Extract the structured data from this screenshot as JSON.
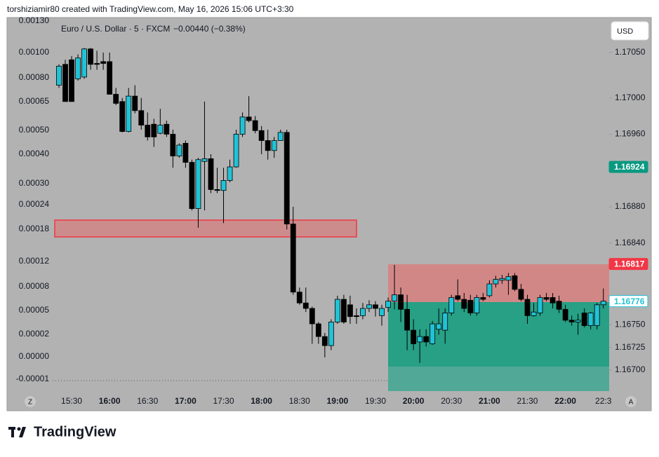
{
  "header": {
    "text": "torshiziamir80 created with TradingView.com, May 16, 2026 15:06 UTC+3:30"
  },
  "chart_data": {
    "type": "candlestick",
    "title": "Euro / U.S. Dollar · 5 · FXCM",
    "subtitle": "−0.00440 (−0.38%)",
    "currency": "USD",
    "scale_buttons": [
      "Z",
      "A"
    ],
    "up_color": "#22c2d6",
    "down_color": "#000000",
    "categories": [
      null,
      null,
      "15:30",
      null,
      null,
      null,
      null,
      null,
      "16:00",
      null,
      null,
      null,
      null,
      null,
      "16:30",
      null,
      null,
      null,
      null,
      null,
      "17:00",
      null,
      null,
      null,
      null,
      null,
      "17:30",
      null,
      null,
      null,
      null,
      null,
      "18:00",
      null,
      null,
      null,
      null,
      null,
      "18:30",
      null,
      null,
      null,
      null,
      null,
      "19:00",
      null,
      null,
      null,
      null,
      null,
      "19:30",
      null,
      null,
      null,
      null,
      null,
      "20:00",
      null,
      null,
      null,
      null,
      null,
      "20:30",
      null,
      null,
      null,
      null,
      null,
      "21:00",
      null,
      null,
      null,
      null,
      null,
      "21:30",
      null,
      null,
      null,
      null,
      null,
      "22:00",
      null,
      null,
      null,
      null,
      null,
      "22:3"
    ],
    "open": [
      1.17014,
      1.17037,
      1.17042,
      1.17021,
      1.17023,
      1.17054,
      1.17038,
      1.1704,
      1.1704,
      1.17004,
      1.16996,
      1.16963,
      1.17002,
      1.16986,
      1.1697,
      1.16971,
      1.16961,
      1.16971,
      1.1696,
      1.16936,
      1.1695,
      1.16929,
      1.16878,
      1.1693,
      1.16933,
      1.16899,
      1.16898,
      1.16909,
      1.16924,
      1.1696,
      1.16979,
      1.16975,
      1.16964,
      1.16953,
      1.16942,
      1.16953,
      1.16962,
      1.16861,
      1.16786,
      1.16774,
      1.16768,
      1.16751,
      1.16737,
      1.16727,
      1.16753,
      1.16778,
      1.16772,
      1.1676,
      1.1676,
      1.16768,
      1.16772,
      1.1676,
      1.16769,
      1.16776,
      1.16783,
      1.16767,
      1.16744,
      1.16731,
      1.16737,
      1.16729,
      1.16745,
      1.16744,
      1.16763,
      1.16782,
      1.16778,
      1.16777,
      1.16763,
      1.1678,
      1.16782,
      1.16795,
      1.16799,
      1.16799,
      1.16804,
      1.16789,
      1.16778,
      1.1676,
      1.16763,
      1.1678,
      1.1678,
      1.16776,
      1.16767,
      1.16755,
      1.16753,
      1.16763,
      1.16749,
      1.16749,
      1.16772
    ],
    "high": [
      1.17037,
      1.17042,
      1.17046,
      1.17048,
      1.17055,
      1.17055,
      1.17052,
      1.1705,
      1.1705,
      1.17011,
      1.17,
      1.17011,
      1.17014,
      1.17,
      1.16984,
      1.16977,
      1.16988,
      1.16975,
      1.16965,
      1.1695,
      1.16953,
      1.16932,
      1.16934,
      1.16996,
      1.16938,
      1.16923,
      1.16923,
      1.16932,
      1.16965,
      1.16984,
      1.17002,
      1.1698,
      1.16969,
      1.16965,
      1.16957,
      1.16965,
      1.16965,
      1.1688,
      1.16791,
      1.16791,
      1.1677,
      1.16753,
      1.16741,
      1.16756,
      1.16782,
      1.16783,
      1.16782,
      1.16768,
      1.16774,
      1.16777,
      1.16776,
      1.16772,
      1.1678,
      1.16816,
      1.16791,
      1.16783,
      1.16756,
      1.16745,
      1.16745,
      1.16754,
      1.16768,
      1.16768,
      1.16783,
      1.168,
      1.16785,
      1.16783,
      1.16783,
      1.16785,
      1.16799,
      1.16804,
      1.16805,
      1.16807,
      1.16807,
      1.16795,
      1.16783,
      1.16774,
      1.16783,
      1.16785,
      1.16785,
      1.16782,
      1.16772,
      1.1676,
      1.16762,
      1.16768,
      1.16764,
      1.16774,
      1.1679
    ],
    "low": [
      1.17011,
      1.16996,
      1.16996,
      1.17019,
      1.17021,
      1.17031,
      1.17031,
      1.17031,
      1.17004,
      1.16992,
      1.16962,
      1.16962,
      1.16983,
      1.16965,
      1.16953,
      1.16946,
      1.1696,
      1.16957,
      1.16923,
      1.16934,
      1.16923,
      1.16876,
      1.16857,
      1.16876,
      1.16895,
      1.16895,
      1.16862,
      1.16907,
      1.16923,
      1.16957,
      1.16973,
      1.16961,
      1.16938,
      1.16932,
      1.16934,
      1.16953,
      1.16855,
      1.16783,
      1.16772,
      1.16764,
      1.16729,
      1.16729,
      1.16714,
      1.16722,
      1.16751,
      1.16751,
      1.16751,
      1.16751,
      1.16756,
      1.16764,
      1.16759,
      1.16749,
      1.16764,
      1.16767,
      1.16753,
      1.16722,
      1.16722,
      1.16708,
      1.16726,
      1.16728,
      1.16739,
      1.16729,
      1.1676,
      1.16776,
      1.16764,
      1.1676,
      1.1676,
      1.16776,
      1.1678,
      1.16791,
      1.16795,
      1.16783,
      1.16787,
      1.16776,
      1.16751,
      1.16759,
      1.1676,
      1.16776,
      1.16768,
      1.16763,
      1.16753,
      1.16749,
      1.16739,
      1.16747,
      1.16745,
      1.16745,
      1.16768
    ],
    "close": [
      1.17035,
      1.16996,
      1.16996,
      1.17044,
      1.17054,
      1.17037,
      1.17037,
      1.17038,
      1.17004,
      1.16994,
      1.16963,
      1.17002,
      1.16986,
      1.1697,
      1.16957,
      1.16957,
      1.1697,
      1.1696,
      1.16936,
      1.16948,
      1.16929,
      1.16878,
      1.16932,
      1.16933,
      1.16899,
      1.16898,
      1.16909,
      1.16924,
      1.1696,
      1.16979,
      1.16975,
      1.16964,
      1.16953,
      1.16942,
      1.16953,
      1.16962,
      1.16861,
      1.16786,
      1.16774,
      1.16768,
      1.16751,
      1.16737,
      1.16727,
      1.16753,
      1.16778,
      1.16753,
      1.16759,
      1.16759,
      1.16768,
      1.16772,
      1.16768,
      1.16768,
      1.16776,
      1.16783,
      1.16767,
      1.16744,
      1.16729,
      1.16737,
      1.16731,
      1.16751,
      1.16751,
      1.16763,
      1.1678,
      1.16778,
      1.16768,
      1.16763,
      1.1678,
      1.16778,
      1.16795,
      1.168,
      1.16801,
      1.16803,
      1.16789,
      1.16778,
      1.1676,
      1.16764,
      1.1678,
      1.16778,
      1.16774,
      1.16767,
      1.16755,
      1.16753,
      1.16755,
      1.16749,
      1.16763,
      1.16772,
      1.16776
    ],
    "ylim": [
      1.166753,
      1.170886
    ],
    "yticks": [
      {
        "value": 1.1705,
        "label": "1.17050"
      },
      {
        "value": 1.17,
        "label": "1.17000"
      },
      {
        "value": 1.1696,
        "label": "1.16960"
      },
      {
        "value": 1.1688,
        "label": "1.16880"
      },
      {
        "value": 1.1684,
        "label": "1.16840"
      },
      {
        "value": 1.1675,
        "label": "1.16750"
      },
      1.16725,
      {
        "value": 1.167,
        "label": "1.16700"
      }
    ],
    "left_ticks": [
      {
        "value": 0.0013,
        "label": "0.00130"
      },
      {
        "value": 0.001,
        "label": "0.00100"
      },
      {
        "value": 0.0008,
        "label": "0.00080"
      },
      {
        "value": 0.00065,
        "label": "0.00065"
      },
      {
        "value": 0.0005,
        "label": "0.00050"
      },
      {
        "value": 0.0004,
        "label": "0.00040"
      },
      {
        "value": 0.0003,
        "label": "0.00030"
      },
      0.00024,
      0.00018,
      0.00012,
      {
        "value": 8e-05,
        "label": "0.00008"
      },
      {
        "value": 5e-05,
        "label": "0.00005"
      },
      {
        "value": 2e-05,
        "label": "0.00002"
      },
      {
        "value": 0,
        "label": "0.00000"
      },
      {
        "value": -1e-05,
        "label": "-0.00001"
      }
    ],
    "price_labels": [
      {
        "value": 1.16924,
        "color": "#089981"
      },
      {
        "value": 1.16817,
        "color": "#f23645"
      },
      {
        "value": 1.16776,
        "color": "#22c2d6"
      }
    ]
  },
  "footer": {
    "logo": "TradingView"
  }
}
